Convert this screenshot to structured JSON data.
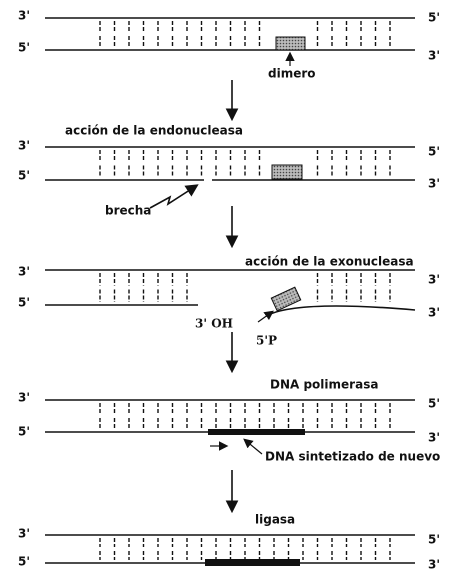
{
  "panels": [
    {
      "left_top": "3'",
      "left_bottom": "5'",
      "right_top": "5'",
      "right_bottom": "3'",
      "label": "dimero"
    },
    {
      "left_top": "3'",
      "left_bottom": "5'",
      "right_top": "5'",
      "right_bottom": "3'",
      "title": "acción de la endonucleasa",
      "label": "brecha"
    },
    {
      "left_top": "3'",
      "left_bottom": "5'",
      "right_top": "3'",
      "right_bottom": "3'",
      "title": "acción de la exonucleasa",
      "end_3": "3' OH",
      "end_5": "5'P"
    },
    {
      "left_top": "3'",
      "left_bottom": "5'",
      "right_top": "5'",
      "right_bottom": "3'",
      "title": "DNA polimerasa",
      "label": "DNA sintetizado de nuevo"
    },
    {
      "left_top": "3'",
      "left_bottom": "5'",
      "right_top": "5'",
      "right_bottom": "3'",
      "title": "ligasa"
    }
  ]
}
